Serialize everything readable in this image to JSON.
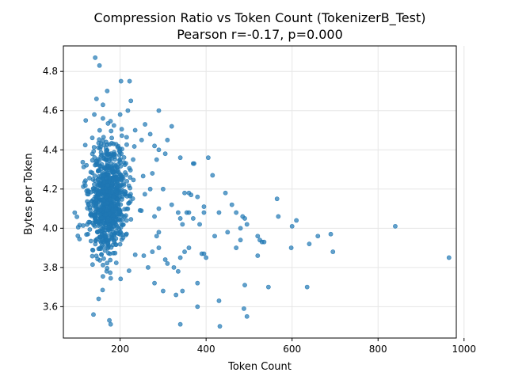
{
  "chart_data": {
    "type": "scatter",
    "title": "Compression Ratio vs Token Count (TokenizerB_Test)",
    "subtitle": "Pearson r=-0.17, p=0.000",
    "xlabel": "Token Count",
    "ylabel": "Bytes per Token",
    "xlim": [
      68,
      982
    ],
    "ylim": [
      3.44,
      4.93
    ],
    "xticks": [
      200,
      400,
      600,
      800,
      1000
    ],
    "yticks": [
      3.6,
      3.8,
      4.0,
      4.2,
      4.4,
      4.6,
      4.8
    ],
    "xtick_labels": [
      "200",
      "400",
      "600",
      "800",
      "1000"
    ],
    "ytick_labels": [
      "3.6",
      "3.8",
      "4.0",
      "4.2",
      "4.4",
      "4.6",
      "4.8"
    ],
    "grid": true,
    "legend": "none",
    "point_color": "#1f77b4",
    "point_alpha": 0.7,
    "series": [
      {
        "points": [
          [
            142,
            4.87
          ],
          [
            152,
            4.83
          ],
          [
            202,
            4.75
          ],
          [
            222,
            4.75
          ],
          [
            170,
            4.7
          ],
          [
            145,
            4.66
          ],
          [
            225,
            4.65
          ],
          [
            160,
            4.63
          ],
          [
            290,
            4.6
          ],
          [
            218,
            4.6
          ],
          [
            140,
            4.58
          ],
          [
            160,
            4.56
          ],
          [
            200,
            4.58
          ],
          [
            258,
            4.53
          ],
          [
            320,
            4.52
          ],
          [
            120,
            4.55
          ],
          [
            235,
            4.5
          ],
          [
            270,
            4.48
          ],
          [
            250,
            4.45
          ],
          [
            280,
            4.42
          ],
          [
            290,
            4.4
          ],
          [
            305,
            4.38
          ],
          [
            370,
            4.33
          ],
          [
            372,
            4.33
          ],
          [
            405,
            4.36
          ],
          [
            415,
            4.27
          ],
          [
            340,
            4.36
          ],
          [
            300,
            4.2
          ],
          [
            360,
            4.18
          ],
          [
            365,
            4.17
          ],
          [
            380,
            4.16
          ],
          [
            350,
            4.18
          ],
          [
            445,
            4.18
          ],
          [
            320,
            4.12
          ],
          [
            460,
            4.12
          ],
          [
            335,
            4.08
          ],
          [
            340,
            4.05
          ],
          [
            345,
            4.02
          ],
          [
            355,
            4.08
          ],
          [
            360,
            4.08
          ],
          [
            370,
            4.05
          ],
          [
            385,
            4.02
          ],
          [
            395,
            4.08
          ],
          [
            430,
            4.08
          ],
          [
            470,
            4.08
          ],
          [
            485,
            4.06
          ],
          [
            490,
            4.05
          ],
          [
            420,
            3.96
          ],
          [
            450,
            3.98
          ],
          [
            470,
            3.9
          ],
          [
            480,
            3.94
          ],
          [
            520,
            3.96
          ],
          [
            525,
            3.94
          ],
          [
            530,
            3.93
          ],
          [
            535,
            3.93
          ],
          [
            480,
            4.0
          ],
          [
            495,
            4.02
          ],
          [
            565,
            4.15
          ],
          [
            568,
            4.06
          ],
          [
            610,
            4.04
          ],
          [
            600,
            4.01
          ],
          [
            598,
            3.9
          ],
          [
            640,
            3.92
          ],
          [
            660,
            3.96
          ],
          [
            690,
            3.97
          ],
          [
            695,
            3.88
          ],
          [
            840,
            4.01
          ],
          [
            965,
            3.85
          ],
          [
            520,
            3.86
          ],
          [
            545,
            3.7
          ],
          [
            490,
            3.71
          ],
          [
            390,
            3.87
          ],
          [
            395,
            3.87
          ],
          [
            380,
            3.72
          ],
          [
            400,
            3.85
          ],
          [
            360,
            3.9
          ],
          [
            350,
            3.88
          ],
          [
            340,
            3.85
          ],
          [
            335,
            3.78
          ],
          [
            325,
            3.8
          ],
          [
            310,
            3.82
          ],
          [
            305,
            3.84
          ],
          [
            300,
            3.68
          ],
          [
            330,
            3.66
          ],
          [
            345,
            3.68
          ],
          [
            380,
            3.6
          ],
          [
            430,
            3.63
          ],
          [
            488,
            3.59
          ],
          [
            495,
            3.55
          ],
          [
            340,
            3.51
          ],
          [
            432,
            3.5
          ],
          [
            138,
            3.56
          ],
          [
            175,
            3.53
          ],
          [
            178,
            3.51
          ],
          [
            150,
            3.64
          ],
          [
            635,
            3.7
          ],
          [
            280,
            3.72
          ],
          [
            265,
            3.8
          ],
          [
            255,
            3.86
          ],
          [
            275,
            3.88
          ],
          [
            290,
            3.9
          ],
          [
            285,
            3.96
          ],
          [
            290,
            3.98
          ],
          [
            280,
            4.06
          ],
          [
            290,
            4.1
          ],
          [
            270,
            4.2
          ],
          [
            275,
            4.28
          ],
          [
            285,
            4.35
          ],
          [
            310,
            4.45
          ],
          [
            395,
            4.11
          ]
        ]
      }
    ]
  }
}
